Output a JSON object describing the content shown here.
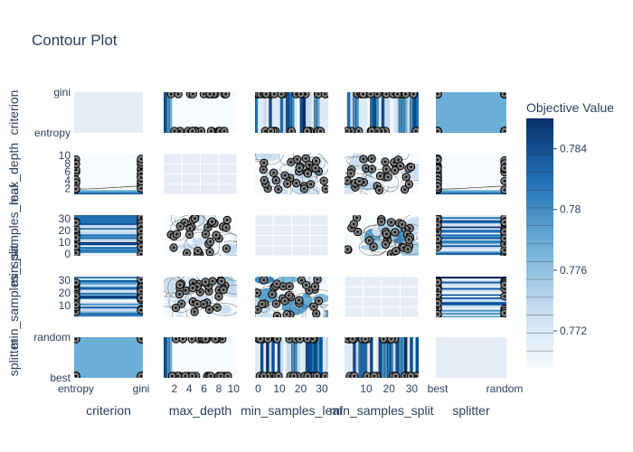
{
  "title": "Contour Plot",
  "chart_data": {
    "type": "contour-matrix",
    "title": "Contour Plot",
    "params": [
      "criterion",
      "max_depth",
      "min_samples_leaf",
      "min_samples_split",
      "splitter"
    ],
    "axes": {
      "criterion": {
        "kind": "categorical",
        "categories": [
          "entropy",
          "gini"
        ]
      },
      "max_depth": {
        "kind": "numeric",
        "range": [
          0.55,
          10.45
        ],
        "x_ticks": [
          2,
          4,
          6,
          8,
          10
        ],
        "y_ticks": [
          2,
          4,
          6,
          8,
          10
        ]
      },
      "min_samples_leaf": {
        "kind": "numeric",
        "range": [
          -1.5,
          33
        ],
        "x_ticks": [
          0,
          10,
          20,
          30
        ],
        "y_ticks": [
          0,
          10,
          20,
          30
        ]
      },
      "min_samples_split": {
        "kind": "numeric",
        "range": [
          0.5,
          33
        ],
        "x_ticks": [
          10,
          20,
          30
        ],
        "y_ticks": [
          10,
          20,
          30
        ]
      },
      "splitter": {
        "kind": "categorical",
        "categories": [
          "best",
          "random"
        ]
      }
    },
    "colorbar": {
      "title": "Objective Value",
      "range": [
        0.7695,
        0.786
      ],
      "ticks": [
        0.772,
        0.776,
        0.78,
        0.784
      ],
      "colorscale": [
        "#f7fbff",
        "#c6dbef",
        "#6baed6",
        "#2171b5",
        "#08306b"
      ]
    },
    "grid": false,
    "legend": "right"
  },
  "colors": {
    "axis_text": "#2a3f5f",
    "grid_panel": "#e5ecf6",
    "marker": "#808080",
    "marker_edge": "#000000"
  }
}
